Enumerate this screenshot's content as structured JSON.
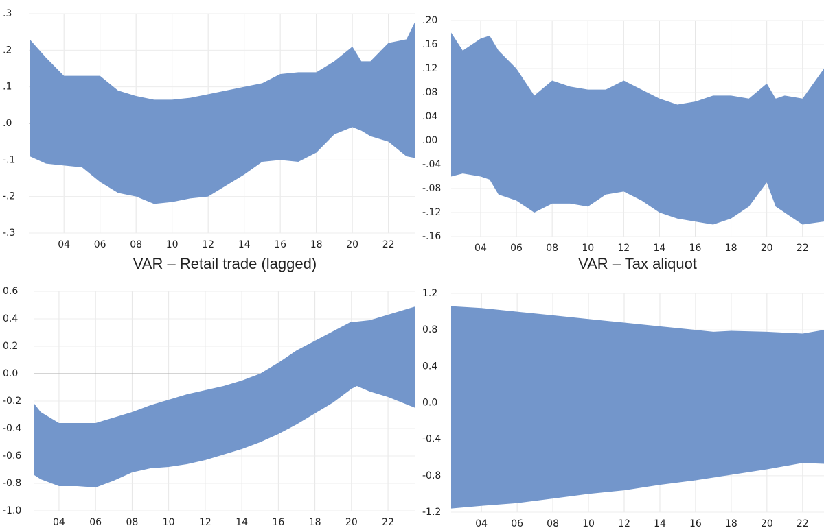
{
  "chart_data": [
    {
      "type": "band",
      "color": "#7396cb",
      "grid": true,
      "x": [
        2.1,
        3,
        4,
        5,
        6,
        7,
        8,
        9,
        10,
        11,
        12,
        13,
        14,
        15,
        16,
        17,
        18,
        19,
        20,
        20.5,
        21,
        22,
        23,
        23.5
      ],
      "series": [
        {
          "values": [
            0.23,
            0.18,
            0.13,
            0.13,
            0.13,
            0.09,
            0.075,
            0.065,
            0.065,
            0.07,
            0.08,
            0.09,
            0.1,
            0.11,
            0.135,
            0.14,
            0.14,
            0.17,
            0.21,
            0.17,
            0.17,
            0.22,
            0.23,
            0.28
          ]
        },
        {
          "values": [
            -0.09,
            -0.11,
            -0.115,
            -0.12,
            -0.16,
            -0.19,
            -0.2,
            -0.22,
            -0.215,
            -0.205,
            -0.2,
            -0.17,
            -0.14,
            -0.105,
            -0.1,
            -0.105,
            -0.08,
            -0.03,
            -0.01,
            -0.02,
            -0.035,
            -0.05,
            -0.09,
            -0.095
          ]
        }
      ],
      "xlim": [
        2.05,
        23.5
      ],
      "xticks": [
        {
          "value": 4,
          "label": "04"
        },
        {
          "value": 6,
          "label": "06"
        },
        {
          "value": 8,
          "label": "08"
        },
        {
          "value": 10,
          "label": "10"
        },
        {
          "value": 12,
          "label": "12"
        },
        {
          "value": 14,
          "label": "14"
        },
        {
          "value": 16,
          "label": "16"
        },
        {
          "value": 18,
          "label": "18"
        },
        {
          "value": 20,
          "label": "20"
        },
        {
          "value": 22,
          "label": "22"
        }
      ],
      "ylim": [
        -0.3,
        0.3
      ],
      "yticks": [
        {
          "value": 0.3,
          "label": ".3"
        },
        {
          "value": 0.2,
          "label": ".2"
        },
        {
          "value": 0.1,
          "label": ".1"
        },
        {
          "value": 0,
          "label": ".0"
        },
        {
          "value": -0.1,
          "label": "-.1"
        },
        {
          "value": -0.2,
          "label": "-.2"
        },
        {
          "value": -0.3,
          "label": "-.3"
        }
      ]
    },
    {
      "type": "band",
      "color": "#7396cb",
      "grid": true,
      "x": [
        2.35,
        3,
        4,
        4.5,
        5,
        6,
        7,
        8,
        9,
        10,
        11,
        12,
        13,
        14,
        15,
        16,
        17,
        18,
        19,
        20,
        20.5,
        21,
        22,
        23.2
      ],
      "series": [
        {
          "values": [
            0.18,
            0.15,
            0.17,
            0.175,
            0.15,
            0.12,
            0.075,
            0.1,
            0.09,
            0.085,
            0.085,
            0.1,
            0.085,
            0.07,
            0.06,
            0.065,
            0.075,
            0.075,
            0.07,
            0.095,
            0.07,
            0.075,
            0.07,
            0.12
          ]
        },
        {
          "values": [
            -0.06,
            -0.055,
            -0.06,
            -0.065,
            -0.09,
            -0.1,
            -0.12,
            -0.105,
            -0.105,
            -0.11,
            -0.09,
            -0.085,
            -0.1,
            -0.12,
            -0.13,
            -0.135,
            -0.14,
            -0.13,
            -0.11,
            -0.07,
            -0.11,
            -0.12,
            -0.14,
            -0.135
          ]
        }
      ],
      "xlim": [
        2.35,
        23.2
      ],
      "xticks": [
        {
          "value": 4,
          "label": "04"
        },
        {
          "value": 6,
          "label": "06"
        },
        {
          "value": 8,
          "label": "08"
        },
        {
          "value": 10,
          "label": "10"
        },
        {
          "value": 12,
          "label": "12"
        },
        {
          "value": 14,
          "label": "14"
        },
        {
          "value": 16,
          "label": "16"
        },
        {
          "value": 18,
          "label": "18"
        },
        {
          "value": 20,
          "label": "20"
        },
        {
          "value": 22,
          "label": "22"
        }
      ],
      "ylim": [
        -0.16,
        0.2
      ],
      "yticks": [
        {
          "value": 0.2,
          "label": ".20"
        },
        {
          "value": 0.16,
          "label": ".16"
        },
        {
          "value": 0.12,
          "label": ".12"
        },
        {
          "value": 0.08,
          "label": ".08"
        },
        {
          "value": 0.04,
          "label": ".04"
        },
        {
          "value": 0,
          "label": ".00"
        },
        {
          "value": -0.04,
          "label": "-.04"
        },
        {
          "value": -0.08,
          "label": "-.08"
        },
        {
          "value": -0.12,
          "label": "-.12"
        },
        {
          "value": -0.16,
          "label": "-.16"
        }
      ]
    },
    {
      "type": "band",
      "title": "VAR – Retail trade (lagged)",
      "color": "#7396cb",
      "grid": true,
      "x": [
        2.65,
        3,
        4,
        5,
        6,
        7,
        8,
        9,
        10,
        11,
        12,
        13,
        14,
        15,
        16,
        17,
        18,
        19,
        20,
        20.3,
        21,
        22,
        23.5
      ],
      "series": [
        {
          "values": [
            -0.22,
            -0.28,
            -0.36,
            -0.36,
            -0.36,
            -0.32,
            -0.28,
            -0.23,
            -0.19,
            -0.15,
            -0.12,
            -0.09,
            -0.05,
            0,
            0.08,
            0.17,
            0.24,
            0.31,
            0.38,
            0.38,
            0.39,
            0.43,
            0.49
          ]
        },
        {
          "values": [
            -0.74,
            -0.77,
            -0.82,
            -0.82,
            -0.83,
            -0.78,
            -0.72,
            -0.69,
            -0.68,
            -0.66,
            -0.63,
            -0.59,
            -0.55,
            -0.5,
            -0.44,
            -0.37,
            -0.29,
            -0.21,
            -0.11,
            -0.09,
            -0.13,
            -0.17,
            -0.25
          ]
        }
      ],
      "xlim": [
        2.65,
        23.5
      ],
      "xticks": [
        {
          "value": 4,
          "label": "04"
        },
        {
          "value": 6,
          "label": "06"
        },
        {
          "value": 8,
          "label": "08"
        },
        {
          "value": 10,
          "label": "10"
        },
        {
          "value": 12,
          "label": "12"
        },
        {
          "value": 14,
          "label": "14"
        },
        {
          "value": 16,
          "label": "16"
        },
        {
          "value": 18,
          "label": "18"
        },
        {
          "value": 20,
          "label": "20"
        },
        {
          "value": 22,
          "label": "22"
        }
      ],
      "ylim": [
        -1,
        0.6
      ],
      "yticks": [
        0.6,
        0.4,
        0.2,
        {
          "value": 0,
          "label": "0.0"
        },
        -0.2,
        -0.4,
        -0.6,
        -0.8,
        {
          "value": -1,
          "label": "-1.0"
        }
      ]
    },
    {
      "type": "band",
      "title": "VAR – Tax aliquot",
      "color": "#7396cb",
      "grid": true,
      "x": [
        2.3,
        4,
        6,
        8,
        10,
        12,
        14,
        16,
        17,
        18,
        20,
        22,
        23.2
      ],
      "series": [
        {
          "values": [
            1.06,
            1.04,
            1.0,
            0.96,
            0.92,
            0.88,
            0.84,
            0.8,
            0.78,
            0.79,
            0.78,
            0.76,
            0.8
          ]
        },
        {
          "values": [
            -1.16,
            -1.13,
            -1.1,
            -1.05,
            -1.0,
            -0.96,
            -0.9,
            -0.85,
            -0.82,
            -0.79,
            -0.73,
            -0.66,
            -0.67
          ]
        }
      ],
      "xlim": [
        2.3,
        23.2
      ],
      "xticks": [
        {
          "value": 4,
          "label": "04"
        },
        {
          "value": 6,
          "label": "06"
        },
        {
          "value": 8,
          "label": "08"
        },
        {
          "value": 10,
          "label": "10"
        },
        {
          "value": 12,
          "label": "12"
        },
        {
          "value": 14,
          "label": "14"
        },
        {
          "value": 16,
          "label": "16"
        },
        {
          "value": 18,
          "label": "18"
        },
        {
          "value": 20,
          "label": "20"
        },
        {
          "value": 22,
          "label": "22"
        }
      ],
      "ylim": [
        -1.2,
        1.2
      ],
      "yticks": [
        1.2,
        0.8,
        0.4,
        {
          "value": 0,
          "label": "0.0"
        },
        -0.4,
        -0.8,
        -1.2
      ]
    }
  ]
}
